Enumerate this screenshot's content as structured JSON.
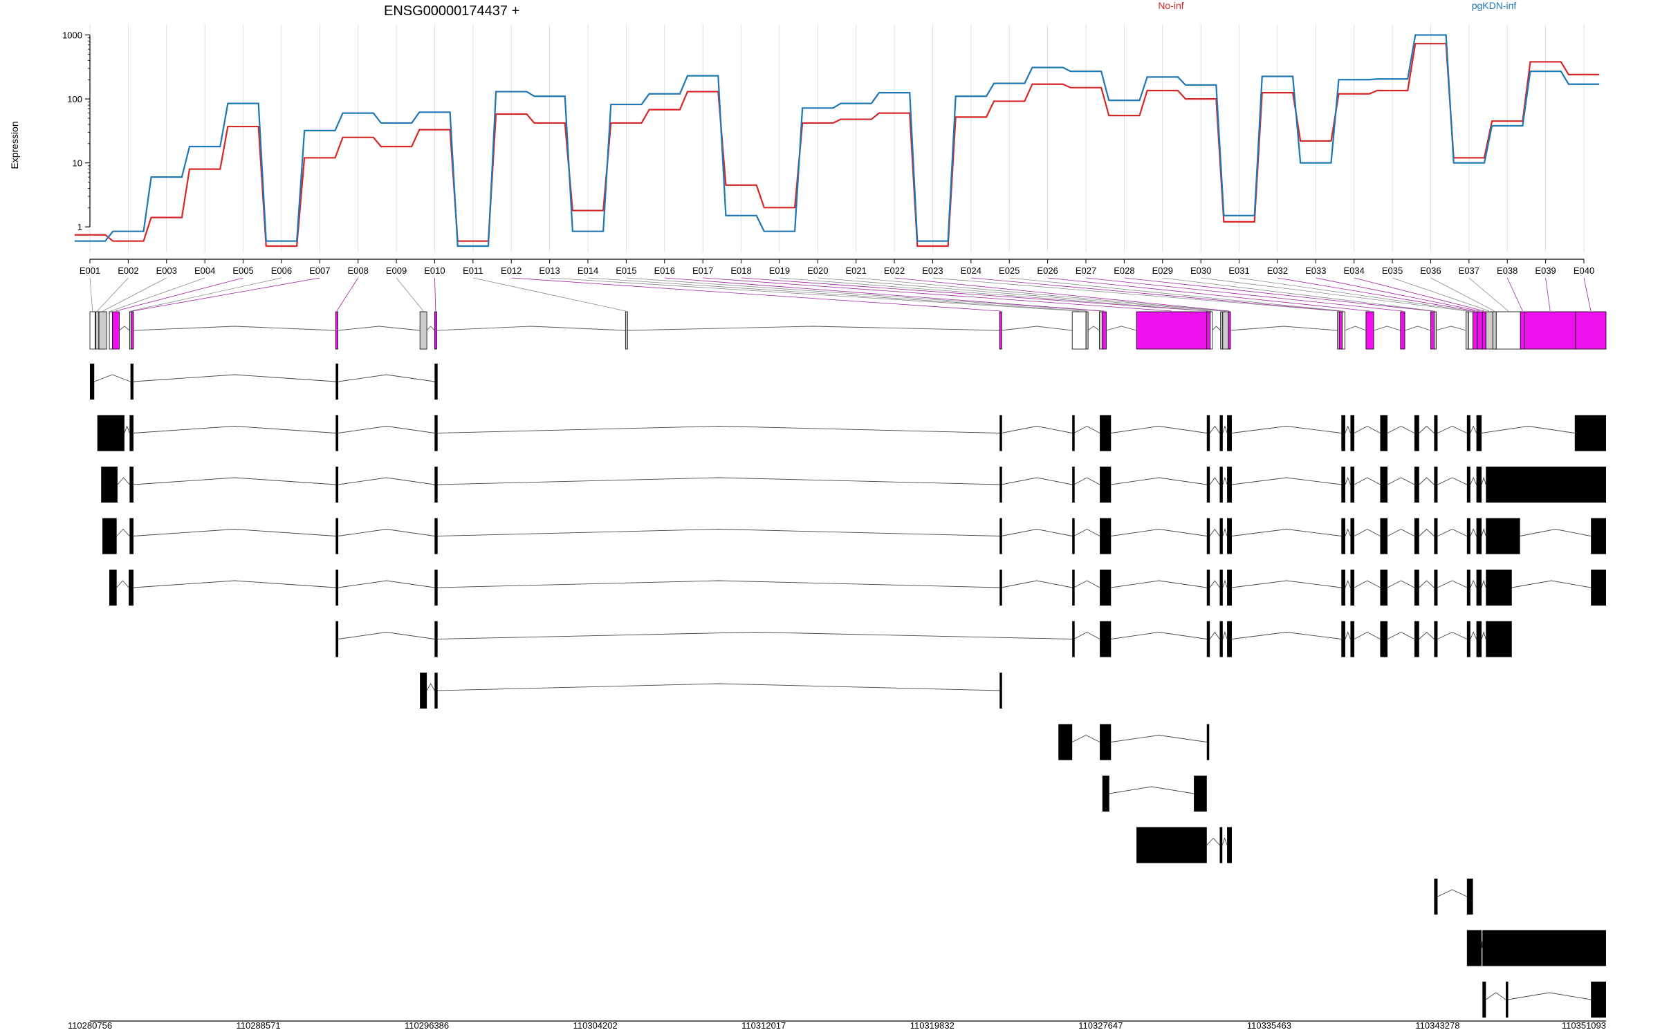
{
  "chart_data": {
    "type": "line",
    "title": "ENSG00000174437 +",
    "ylabel": "Expression",
    "yscale": "log",
    "ylim": [
      0.4,
      1300
    ],
    "yticks": [
      1,
      10,
      100,
      1000
    ],
    "ytick_labels": [
      "1",
      "10",
      "100",
      "1000"
    ],
    "legend_placement": "top-right",
    "categories": [
      "E001",
      "E002",
      "E003",
      "E004",
      "E005",
      "E006",
      "E007",
      "E008",
      "E009",
      "E010",
      "E011",
      "E012",
      "E013",
      "E014",
      "E015",
      "E016",
      "E017",
      "E018",
      "E019",
      "E020",
      "E021",
      "E022",
      "E023",
      "E024",
      "E025",
      "E026",
      "E027",
      "E028",
      "E029",
      "E030",
      "E031",
      "E032",
      "E033",
      "E034",
      "E035",
      "E036",
      "E037",
      "E038",
      "E039",
      "E040"
    ],
    "series": [
      {
        "name": "No-inf",
        "color": "#d62728",
        "values": [
          0.75,
          0.6,
          1.4,
          8,
          37,
          0.5,
          12,
          25,
          18,
          33,
          0.6,
          58,
          42,
          1.8,
          42,
          68,
          130,
          4.5,
          2,
          42,
          48,
          60,
          0.5,
          52,
          92,
          170,
          150,
          55,
          135,
          100,
          1.2,
          125,
          22,
          120,
          135,
          730,
          12,
          45,
          380,
          240
        ]
      },
      {
        "name": "pgKDN-inf",
        "color": "#1f77b4",
        "values": [
          0.6,
          0.85,
          6,
          18,
          85,
          0.6,
          32,
          60,
          42,
          62,
          0.5,
          130,
          110,
          0.85,
          82,
          120,
          230,
          1.5,
          0.85,
          72,
          85,
          125,
          0.6,
          110,
          175,
          310,
          270,
          95,
          220,
          165,
          1.5,
          225,
          10,
          200,
          205,
          1000,
          10,
          38,
          270,
          170
        ]
      }
    ],
    "gene_model": {
      "coord_ticks": [
        "110280756",
        "110288571",
        "110296386",
        "110304202",
        "110312017",
        "110319832",
        "110327647",
        "110335463",
        "110343278",
        "110351093"
      ],
      "coord_range": [
        110280756,
        110351093
      ],
      "bins": [
        {
          "id": "E001",
          "start": 110280756,
          "end": 110280996,
          "sig": false
        },
        {
          "id": "E002",
          "start": 110281025,
          "end": 110281166,
          "sig": false
        },
        {
          "id": "E003",
          "start": 110281175,
          "end": 110281535,
          "sig": false
        },
        {
          "id": "E004",
          "start": 110281656,
          "end": 110281796,
          "sig": false
        },
        {
          "id": "E005",
          "start": 110281796,
          "end": 110282117,
          "sig": true
        },
        {
          "id": "E006",
          "start": 110282597,
          "end": 110282677,
          "sig": false
        },
        {
          "id": "E007",
          "start": 110282677,
          "end": 110282777,
          "sig": true
        },
        {
          "id": "E008",
          "start": 110292158,
          "end": 110292258,
          "sig": true
        },
        {
          "id": "E009",
          "start": 110296066,
          "end": 110296386,
          "sig": false
        },
        {
          "id": "E010",
          "start": 110296746,
          "end": 110296846,
          "sig": true
        },
        {
          "id": "E011",
          "start": 110305603,
          "end": 110305643,
          "sig": false
        },
        {
          "id": "E012",
          "start": 110322960,
          "end": 110323040,
          "sig": true
        },
        {
          "id": "E013",
          "start": 110326327,
          "end": 110326968,
          "sig": false
        },
        {
          "id": "E014",
          "start": 110326968,
          "end": 110327048,
          "sig": false
        },
        {
          "id": "E015",
          "start": 110327587,
          "end": 110327727,
          "sig": false
        },
        {
          "id": "E016",
          "start": 110327727,
          "end": 110327907,
          "sig": true
        },
        {
          "id": "E017",
          "start": 110329308,
          "end": 110332571,
          "sig": true
        },
        {
          "id": "E018",
          "start": 110332571,
          "end": 110332731,
          "sig": true
        },
        {
          "id": "E019",
          "start": 110332731,
          "end": 110332811,
          "sig": false
        },
        {
          "id": "E020",
          "start": 110333211,
          "end": 110333291,
          "sig": false
        },
        {
          "id": "E021",
          "start": 110333311,
          "end": 110333572,
          "sig": false
        },
        {
          "id": "E022",
          "start": 110333572,
          "end": 110333652,
          "sig": true
        },
        {
          "id": "E023",
          "start": 110338634,
          "end": 110338714,
          "sig": false
        },
        {
          "id": "E024",
          "start": 110338714,
          "end": 110338854,
          "sig": true
        },
        {
          "id": "E025",
          "start": 110338854,
          "end": 110338974,
          "sig": false
        },
        {
          "id": "E026",
          "start": 110339955,
          "end": 110340315,
          "sig": true
        },
        {
          "id": "E027",
          "start": 110341556,
          "end": 110341756,
          "sig": true
        },
        {
          "id": "E028",
          "start": 110342957,
          "end": 110343117,
          "sig": true
        },
        {
          "id": "E029",
          "start": 110343117,
          "end": 110343198,
          "sig": false
        },
        {
          "id": "E030",
          "start": 110344598,
          "end": 110344718,
          "sig": false
        },
        {
          "id": "E031",
          "start": 110344718,
          "end": 110344919,
          "sig": false
        },
        {
          "id": "E032",
          "start": 110344919,
          "end": 110345119,
          "sig": true
        },
        {
          "id": "E033",
          "start": 110345119,
          "end": 110345359,
          "sig": true
        },
        {
          "id": "E034",
          "start": 110345359,
          "end": 110345519,
          "sig": true
        },
        {
          "id": "E035",
          "start": 110345519,
          "end": 110345840,
          "sig": false
        },
        {
          "id": "E036",
          "start": 110345840,
          "end": 110346000,
          "sig": false
        },
        {
          "id": "E037",
          "start": 110346000,
          "end": 110347121,
          "sig": false
        },
        {
          "id": "E038",
          "start": 110347121,
          "end": 110347321,
          "sig": true
        },
        {
          "id": "E039",
          "start": 110347321,
          "end": 110349683,
          "sig": true
        },
        {
          "id": "E040",
          "start": 110349683,
          "end": 110351093,
          "sig": true
        }
      ],
      "transcripts": [
        [
          [
            110280756,
            110280956
          ],
          [
            110282637,
            110282777
          ],
          [
            110292158,
            110292278
          ],
          [
            110296746,
            110296886
          ]
        ],
        [
          [
            110281100,
            110282357
          ],
          [
            110282597,
            110282777
          ],
          [
            110292158,
            110292278
          ],
          [
            110296746,
            110296886
          ],
          [
            110322960,
            110323040
          ],
          [
            110326327,
            110326408
          ],
          [
            110327607,
            110328127
          ],
          [
            110332571,
            110332711
          ],
          [
            110333171,
            110333311
          ],
          [
            110333512,
            110333732
          ],
          [
            110338814,
            110338994
          ],
          [
            110339235,
            110339415
          ],
          [
            110340615,
            110340955
          ],
          [
            110342202,
            110342422
          ],
          [
            110343117,
            110343277
          ],
          [
            110344638,
            110344798
          ],
          [
            110345079,
            110345319
          ],
          [
            110349643,
            110351093
          ]
        ],
        [
          [
            110281276,
            110282036
          ],
          [
            110282597,
            110282777
          ],
          [
            110292158,
            110292278
          ],
          [
            110296746,
            110296886
          ],
          [
            110322960,
            110323040
          ],
          [
            110326327,
            110326408
          ],
          [
            110327607,
            110328127
          ],
          [
            110332571,
            110332711
          ],
          [
            110333171,
            110333311
          ],
          [
            110333512,
            110333732
          ],
          [
            110338814,
            110338994
          ],
          [
            110339235,
            110339415
          ],
          [
            110340615,
            110340955
          ],
          [
            110342202,
            110342422
          ],
          [
            110343117,
            110343277
          ],
          [
            110344638,
            110344798
          ],
          [
            110345079,
            110345319
          ],
          [
            110345519,
            110351093
          ]
        ],
        [
          [
            110281336,
            110281996
          ],
          [
            110282597,
            110282777
          ],
          [
            110292158,
            110292278
          ],
          [
            110296746,
            110296886
          ],
          [
            110322960,
            110323040
          ],
          [
            110326327,
            110326408
          ],
          [
            110327607,
            110328127
          ],
          [
            110332571,
            110332711
          ],
          [
            110333171,
            110333311
          ],
          [
            110333512,
            110333732
          ],
          [
            110338814,
            110338994
          ],
          [
            110339235,
            110339415
          ],
          [
            110340615,
            110340955
          ],
          [
            110342202,
            110342422
          ],
          [
            110343117,
            110343277
          ],
          [
            110344638,
            110344798
          ],
          [
            110345079,
            110345319
          ],
          [
            110345519,
            110347101
          ],
          [
            110350393,
            110351093
          ]
        ],
        [
          [
            110281656,
            110281996
          ],
          [
            110282557,
            110282637
          ],
          [
            110282657,
            110282777
          ],
          [
            110292158,
            110292278
          ],
          [
            110296746,
            110296886
          ],
          [
            110322960,
            110323040
          ],
          [
            110326327,
            110326408
          ],
          [
            110327607,
            110328127
          ],
          [
            110332571,
            110332711
          ],
          [
            110333171,
            110333311
          ],
          [
            110333512,
            110333732
          ],
          [
            110338814,
            110338994
          ],
          [
            110339235,
            110339415
          ],
          [
            110340615,
            110340955
          ],
          [
            110342202,
            110342422
          ],
          [
            110343117,
            110343277
          ],
          [
            110344638,
            110344798
          ],
          [
            110345079,
            110345319
          ],
          [
            110345519,
            110346721
          ],
          [
            110350393,
            110351093
          ]
        ],
        [
          [
            110292158,
            110292278
          ],
          [
            110296746,
            110296886
          ],
          [
            110326327,
            110326408
          ],
          [
            110327607,
            110328127
          ],
          [
            110332571,
            110332711
          ],
          [
            110333171,
            110333311
          ],
          [
            110333512,
            110333732
          ],
          [
            110338814,
            110338994
          ],
          [
            110339235,
            110339415
          ],
          [
            110340615,
            110340955
          ],
          [
            110342202,
            110342422
          ],
          [
            110343117,
            110343277
          ],
          [
            110344638,
            110344798
          ],
          [
            110345079,
            110345319
          ],
          [
            110345519,
            110346721
          ]
        ],
        [
          [
            110296066,
            110296386
          ],
          [
            110296746,
            110296886
          ],
          [
            110322960,
            110323040
          ]
        ],
        [
          [
            110325687,
            110326327
          ],
          [
            110327607,
            110328127
          ],
          [
            110332571,
            110332671
          ]
        ],
        [
          [
            110327727,
            110328047
          ],
          [
            110331971,
            110332571
          ]
        ],
        [
          [
            110329308,
            110332571
          ],
          [
            110333171,
            110333291
          ],
          [
            110333512,
            110333732
          ]
        ],
        [
          [
            110343117,
            110343277
          ],
          [
            110344638,
            110344918
          ]
        ],
        [
          [
            110344638,
            110345319
          ],
          [
            110345359,
            110351093
          ]
        ],
        [
          [
            110345359,
            110345519
          ],
          [
            110346441,
            110346541
          ],
          [
            110350393,
            110351093
          ]
        ]
      ]
    }
  }
}
